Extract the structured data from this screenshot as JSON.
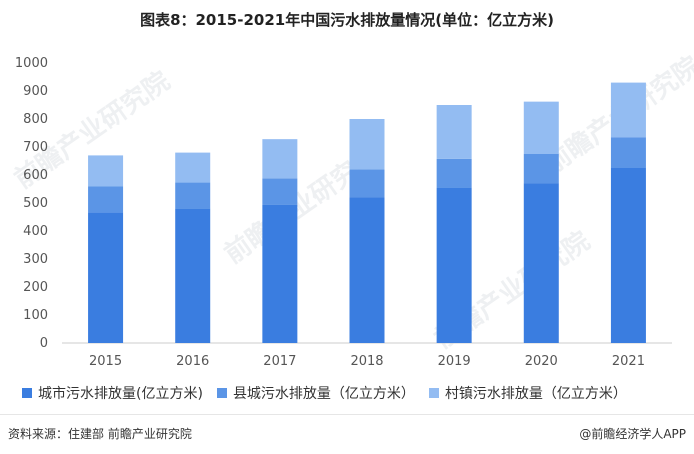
{
  "title": "图表8：2015-2021年中国污水排放量情况(单位：亿立方米)",
  "source_text": "资料来源：住建部 前瞻产业研究院",
  "brand_text": "@前瞻经济学人APP",
  "watermark_text": "前瞻产业研究院",
  "colors": {
    "city": "#3a7de0",
    "county": "#5b95e6",
    "town": "#93bcf2",
    "axis": "#cccccc",
    "tick_text": "#555555"
  },
  "chart_data": {
    "type": "bar",
    "stacked": true,
    "title": "图表8：2015-2021年中国污水排放量情况(单位：亿立方米)",
    "xlabel": "",
    "ylabel": "",
    "categories": [
      "2015",
      "2016",
      "2017",
      "2018",
      "2019",
      "2020",
      "2021"
    ],
    "ylim": [
      0,
      1000
    ],
    "yticks": [
      0,
      100,
      200,
      300,
      400,
      500,
      600,
      700,
      800,
      900,
      1000
    ],
    "grid": false,
    "legend_position": "bottom",
    "series": [
      {
        "name": "城市污水排放量(亿立方米)",
        "color": "#3a7de0",
        "values": [
          467,
          480,
          493,
          521,
          555,
          571,
          625
        ]
      },
      {
        "name": "县城污水排放量（亿立方米）",
        "color": "#5b95e6",
        "values": [
          92,
          93,
          95,
          99,
          103,
          104,
          110
        ]
      },
      {
        "name": "村镇污水排放量（亿立方米）",
        "color": "#93bcf2",
        "values": [
          111,
          107,
          140,
          180,
          192,
          187,
          195
        ]
      }
    ]
  }
}
